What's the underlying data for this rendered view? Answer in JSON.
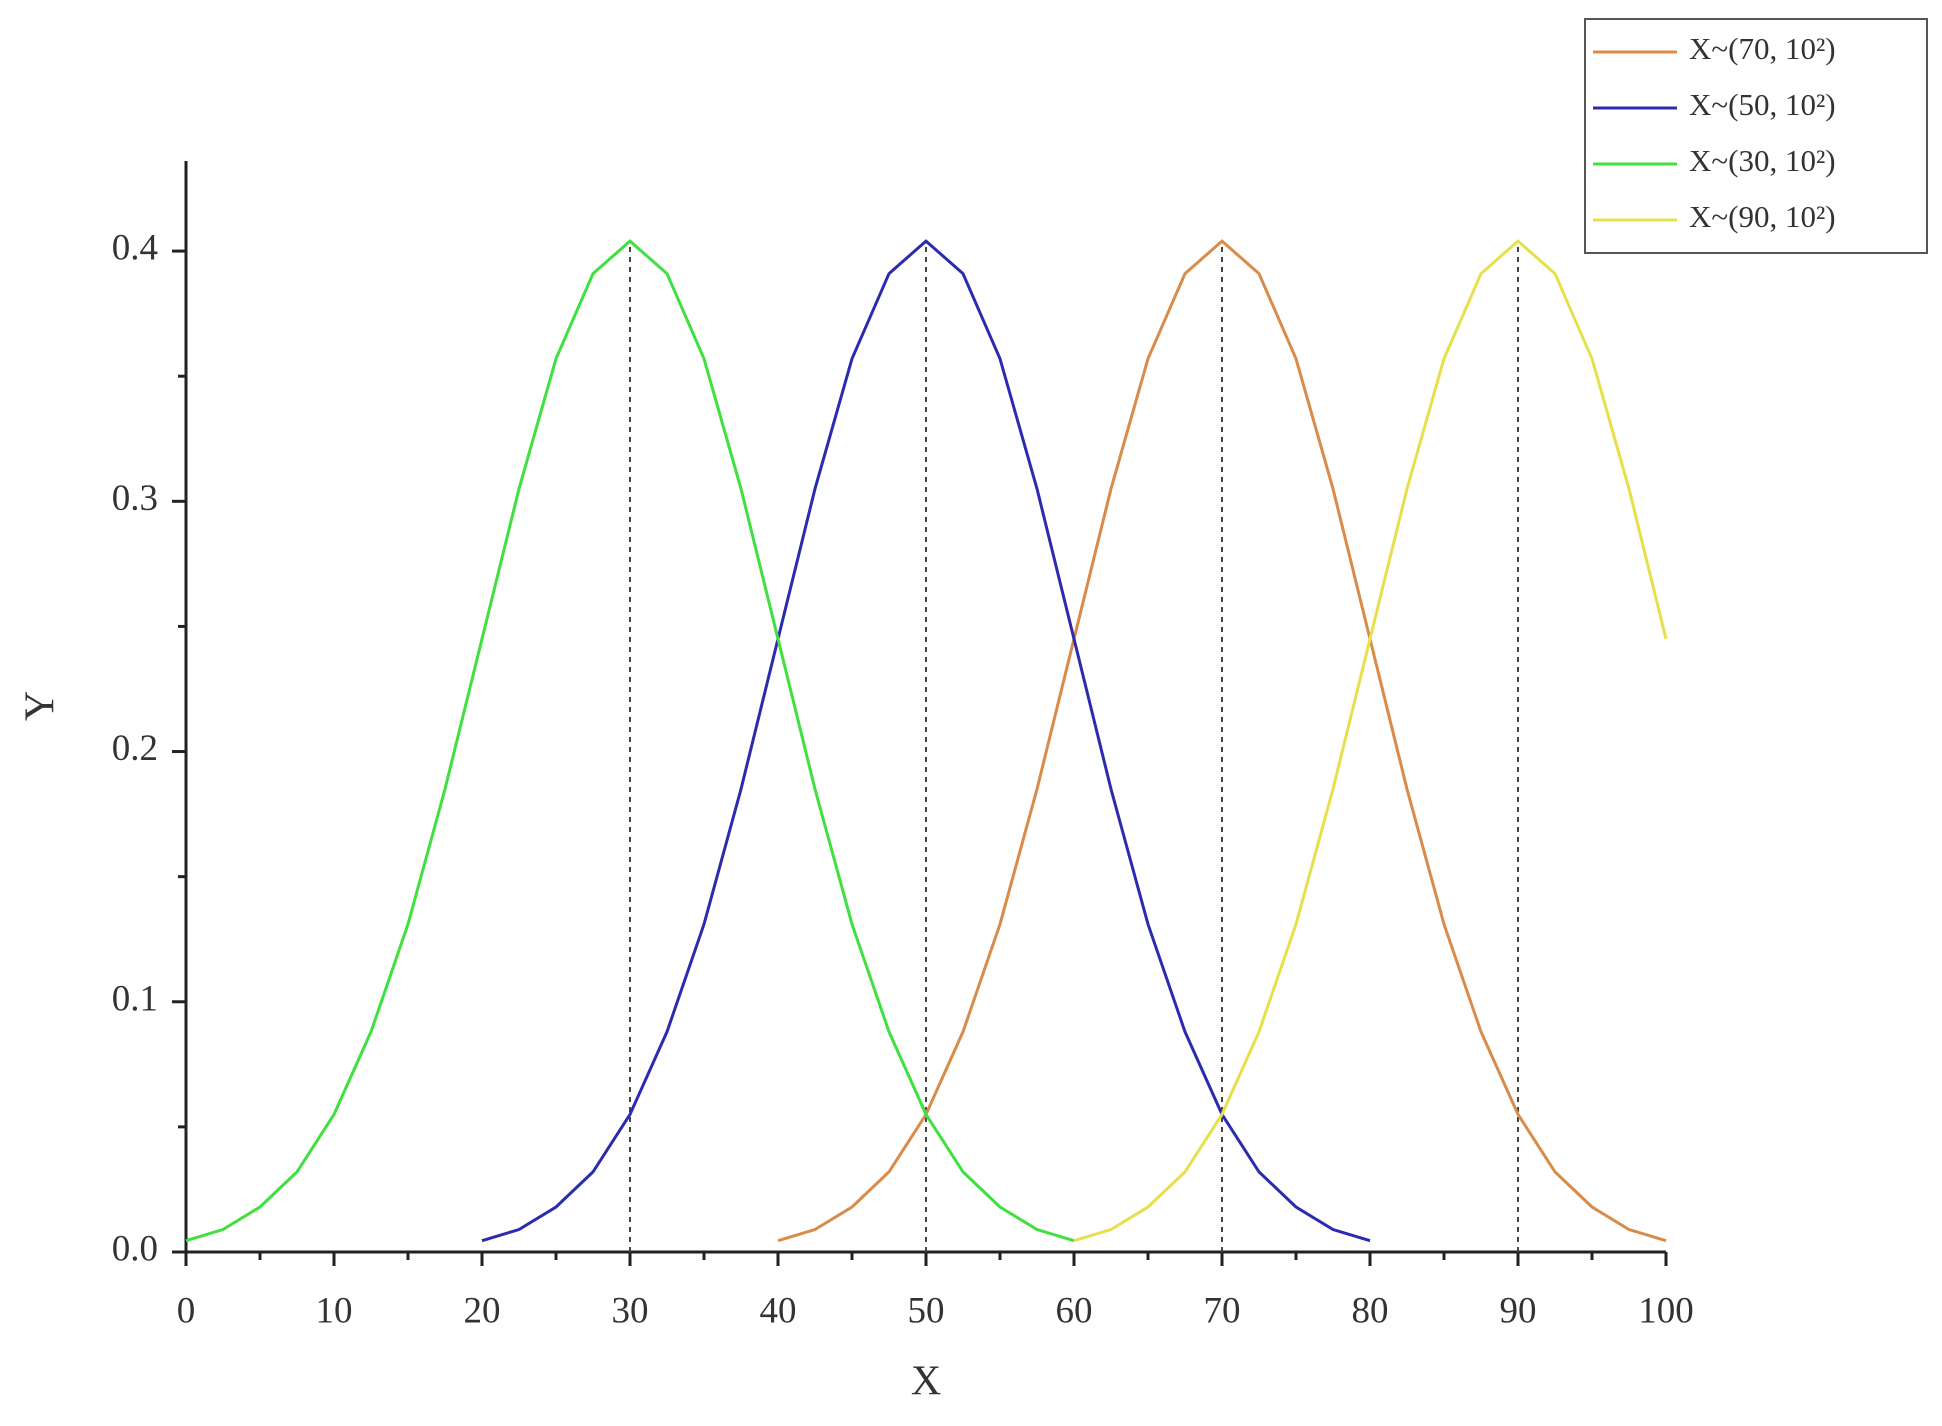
{
  "chart_data": {
    "type": "line",
    "x_label": "X",
    "y_label": "Y",
    "x": [
      0,
      2.5,
      5,
      7.5,
      10,
      12.5,
      15,
      17.5,
      20,
      22.5,
      25,
      27.5,
      30,
      32.5,
      35,
      37.5,
      40,
      42.5,
      45,
      47.5,
      50,
      52.5,
      55,
      57.5,
      60,
      62.5,
      65,
      67.5,
      70,
      72.5,
      75,
      77.5,
      80,
      82.5,
      85,
      87.5,
      90,
      92.5,
      95,
      97.5,
      100
    ],
    "series": [
      {
        "name": "X~(70, 10²)",
        "color": "#d98b4a",
        "values": [
          null,
          null,
          null,
          null,
          null,
          null,
          null,
          null,
          null,
          null,
          null,
          null,
          null,
          null,
          null,
          null,
          0.0045,
          0.009,
          0.018,
          0.032,
          0.055,
          0.088,
          0.131,
          0.185,
          0.245,
          0.305,
          0.357,
          0.391,
          0.404,
          0.391,
          0.357,
          0.305,
          0.245,
          0.185,
          0.131,
          0.088,
          0.055,
          0.032,
          0.018,
          0.009,
          0.0045
        ]
      },
      {
        "name": "X~(50, 10²)",
        "color": "#2b2bb0",
        "values": [
          null,
          null,
          null,
          null,
          null,
          null,
          null,
          null,
          0.0045,
          0.009,
          0.018,
          0.032,
          0.055,
          0.088,
          0.131,
          0.185,
          0.245,
          0.305,
          0.357,
          0.391,
          0.404,
          0.391,
          0.357,
          0.305,
          0.245,
          0.185,
          0.131,
          0.088,
          0.055,
          0.032,
          0.018,
          0.009,
          0.0045,
          null,
          null,
          null,
          null,
          null,
          null,
          null,
          null
        ]
      },
      {
        "name": "X~(30, 10²)",
        "color": "#3fe03f",
        "values": [
          0.0045,
          0.009,
          0.018,
          0.032,
          0.055,
          0.088,
          0.131,
          0.185,
          0.245,
          0.305,
          0.357,
          0.391,
          0.404,
          0.391,
          0.357,
          0.305,
          0.245,
          0.185,
          0.131,
          0.088,
          0.055,
          0.032,
          0.018,
          0.009,
          0.0045,
          null,
          null,
          null,
          null,
          null,
          null,
          null,
          null,
          null,
          null,
          null,
          null,
          null,
          null,
          null,
          null
        ]
      },
      {
        "name": "X~(90, 10²)",
        "color": "#e6e04a",
        "values": [
          null,
          null,
          null,
          null,
          null,
          null,
          null,
          null,
          null,
          null,
          null,
          null,
          null,
          null,
          null,
          null,
          null,
          null,
          null,
          null,
          null,
          null,
          null,
          null,
          0.0045,
          0.009,
          0.018,
          0.032,
          0.055,
          0.088,
          0.131,
          0.185,
          0.245,
          0.305,
          0.357,
          0.391,
          0.404,
          0.391,
          0.357,
          0.305,
          0.245
        ]
      }
    ],
    "reference_lines": [
      30,
      50,
      70,
      90
    ],
    "xlim": [
      0,
      100
    ],
    "xticks": [
      0,
      10,
      20,
      30,
      40,
      50,
      60,
      70,
      80,
      90,
      100
    ],
    "ylim": [
      0,
      0.436
    ],
    "yticks": [
      {
        "value": 0,
        "label": "0.0"
      },
      0.1,
      0.2,
      0.3,
      0.4
    ],
    "legend": "top-right"
  }
}
